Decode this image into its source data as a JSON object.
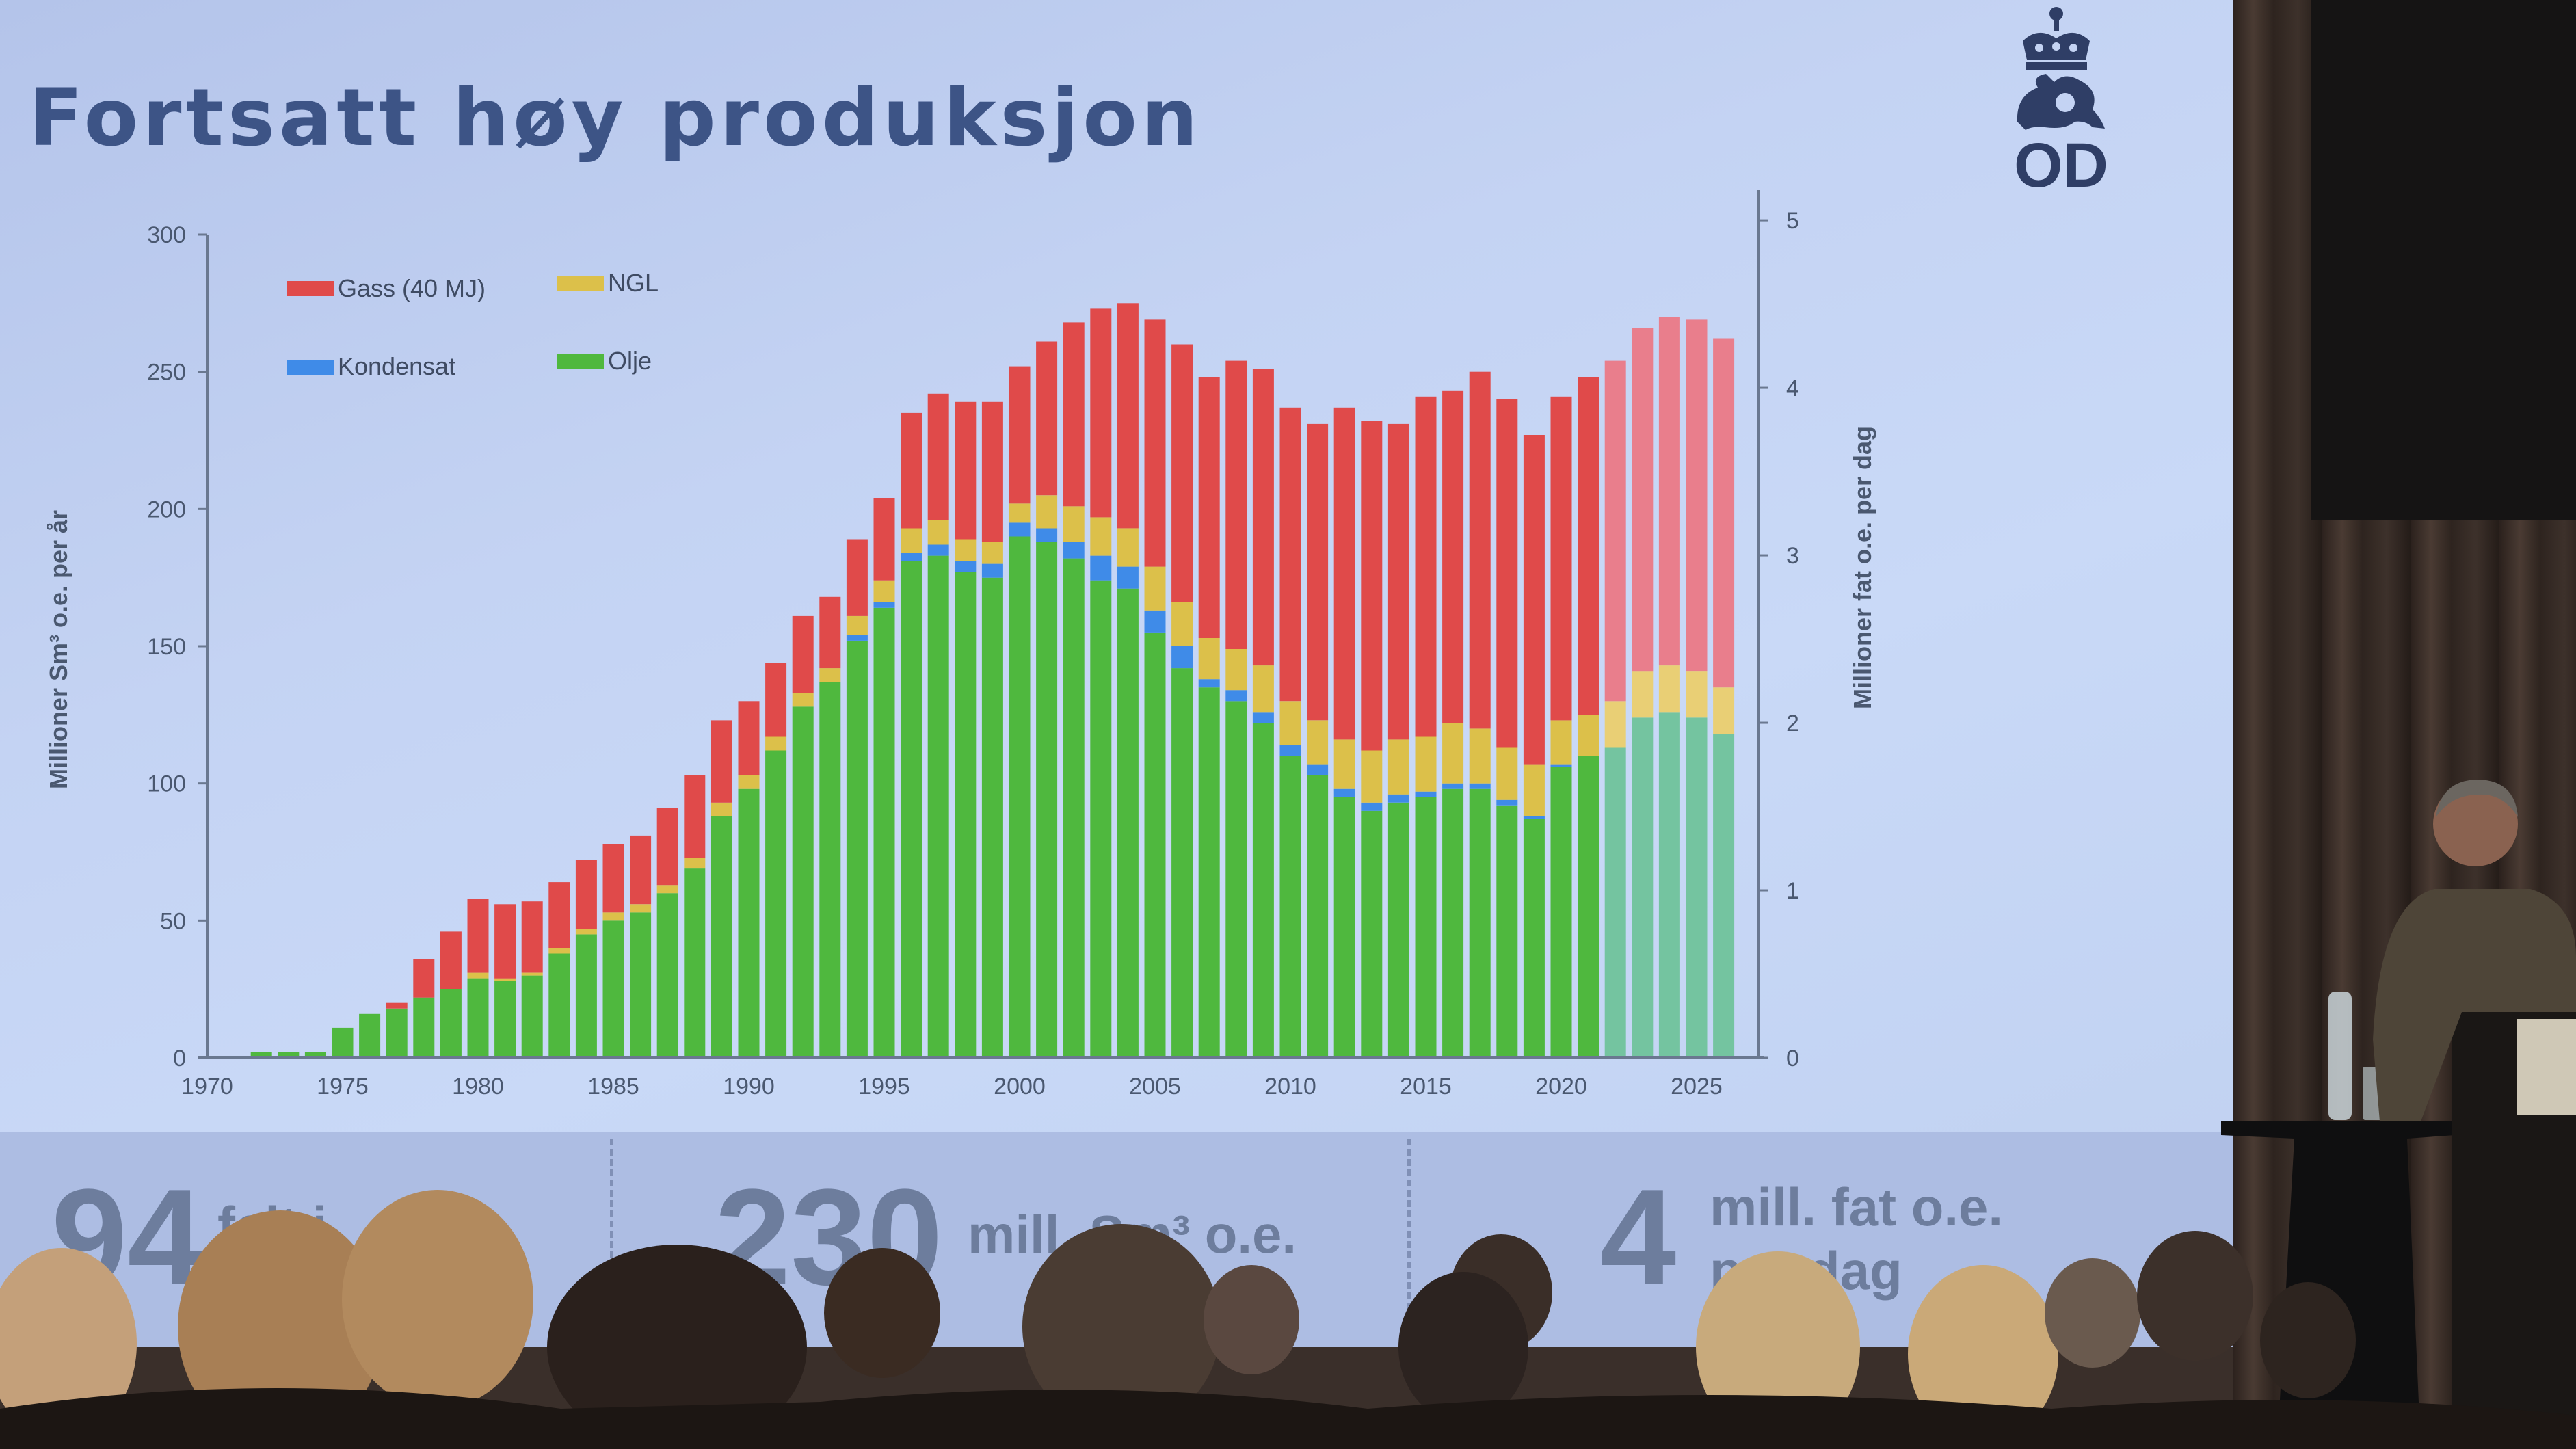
{
  "slide": {
    "title": "Fortsatt høy produksjon",
    "logo_text": "OD"
  },
  "chart_data": {
    "type": "bar",
    "stacked": true,
    "x": [
      1971,
      1972,
      1973,
      1974,
      1975,
      1976,
      1977,
      1978,
      1979,
      1980,
      1981,
      1982,
      1983,
      1984,
      1985,
      1986,
      1987,
      1988,
      1989,
      1990,
      1991,
      1992,
      1993,
      1994,
      1995,
      1996,
      1997,
      1998,
      1999,
      2000,
      2001,
      2002,
      2003,
      2004,
      2005,
      2006,
      2007,
      2008,
      2009,
      2010,
      2011,
      2012,
      2013,
      2014,
      2015,
      2016,
      2017,
      2018,
      2019,
      2020,
      2021,
      2022,
      2023,
      2024,
      2025,
      2026
    ],
    "forecast_from": 2022,
    "series": [
      {
        "name": "Olje",
        "color": "#4fb83e",
        "forecast_color": "#74c4a0",
        "values": [
          0,
          2,
          2,
          2,
          11,
          16,
          18,
          22,
          25,
          29,
          28,
          30,
          38,
          45,
          50,
          53,
          60,
          69,
          88,
          98,
          112,
          128,
          137,
          152,
          164,
          181,
          183,
          177,
          175,
          190,
          188,
          182,
          174,
          171,
          155,
          142,
          135,
          130,
          122,
          110,
          103,
          95,
          90,
          93,
          95,
          98,
          98,
          92,
          87,
          106,
          110,
          113,
          124,
          126,
          124,
          118
        ]
      },
      {
        "name": "Kondensat",
        "color": "#3f8be8",
        "forecast_color": "#74c4a0",
        "values": [
          0,
          0,
          0,
          0,
          0,
          0,
          0,
          0,
          0,
          0,
          0,
          0,
          0,
          0,
          0,
          0,
          0,
          0,
          0,
          0,
          0,
          0,
          0,
          2,
          2,
          3,
          4,
          4,
          5,
          5,
          5,
          6,
          9,
          8,
          8,
          8,
          3,
          4,
          4,
          4,
          4,
          3,
          3,
          3,
          2,
          2,
          2,
          2,
          1,
          1,
          0,
          0,
          0,
          0,
          0,
          0
        ]
      },
      {
        "name": "NGL",
        "color": "#dcc04a",
        "forecast_color": "#e9cf75",
        "values": [
          0,
          0,
          0,
          0,
          0,
          0,
          0,
          0,
          0,
          2,
          1,
          1,
          2,
          2,
          3,
          3,
          3,
          4,
          5,
          5,
          5,
          5,
          5,
          7,
          8,
          9,
          9,
          8,
          8,
          7,
          12,
          13,
          14,
          14,
          16,
          16,
          15,
          15,
          17,
          16,
          16,
          18,
          19,
          20,
          20,
          22,
          20,
          19,
          19,
          16,
          15,
          17,
          17,
          17,
          17,
          17
        ]
      },
      {
        "name": "Gass (40 MJ)",
        "color": "#e04a4a",
        "forecast_color": "#e97e8c",
        "values": [
          0,
          0,
          0,
          0,
          0,
          0,
          2,
          14,
          21,
          27,
          27,
          26,
          24,
          25,
          25,
          25,
          28,
          30,
          30,
          27,
          27,
          28,
          26,
          28,
          30,
          42,
          46,
          50,
          51,
          50,
          56,
          67,
          76,
          82,
          90,
          94,
          95,
          105,
          108,
          107,
          108,
          121,
          120,
          115,
          124,
          121,
          130,
          127,
          120,
          118,
          123,
          124,
          125,
          127,
          128,
          127
        ]
      }
    ],
    "xlim": [
      1970,
      2027
    ],
    "xticks": [
      1970,
      1975,
      1980,
      1985,
      1990,
      1995,
      2000,
      2005,
      2010,
      2015,
      2020,
      2025
    ],
    "ylim": [
      0,
      300
    ],
    "yticks": [
      0,
      50,
      100,
      150,
      200,
      250,
      300
    ],
    "y2lim": [
      0,
      5.18
    ],
    "y2ticks": [
      0,
      1,
      2,
      3,
      4,
      5
    ],
    "ylabel": "Millioner  Sm³ o.e. per år",
    "y2label": "Millioner fat o.e. per dag",
    "legend": [
      "Gass (40 MJ)",
      "NGL",
      "Kondensat",
      "Olje"
    ],
    "legend_placement": "top-left",
    "grid": false
  },
  "footer": {
    "kpis": [
      {
        "number": "94",
        "unit": "felt i"
      },
      {
        "number": "230",
        "unit": "mill. Sm³ o.e."
      },
      {
        "number": "4",
        "unit": "mill. fat o.e.",
        "unit2": "per dag"
      }
    ]
  }
}
